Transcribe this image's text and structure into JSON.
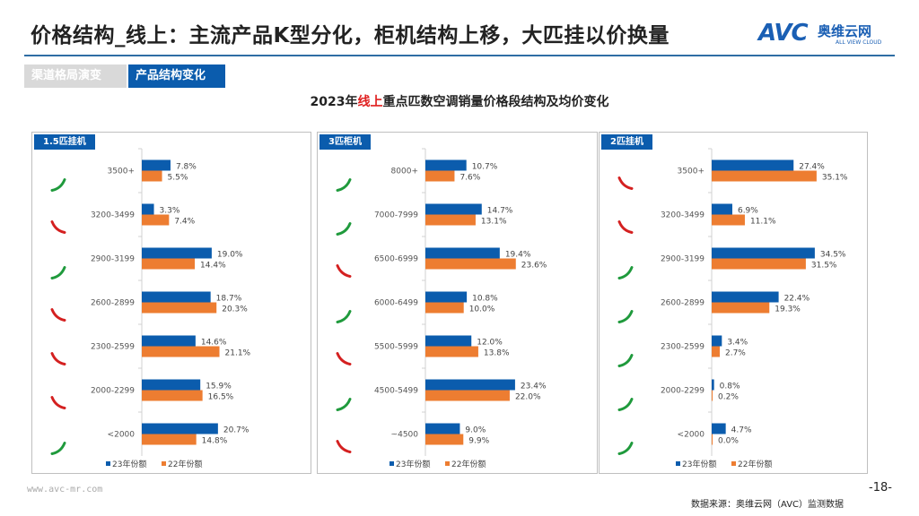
{
  "header": {
    "title": "价格结构_线上：主流产品K型分化，柜机结构上移，大匹挂以价换量",
    "logo": {
      "mark": "AVC",
      "cn": "奥维云网",
      "en": "ALL VIEW CLOUD"
    }
  },
  "tabs": [
    {
      "label": "渠道格局演变",
      "active": false
    },
    {
      "label": "产品结构变化",
      "active": true
    }
  ],
  "subtitle": {
    "prefix": "2023年",
    "highlight": "线上",
    "suffix": "重点匹数空调销量价格段结构及均价变化"
  },
  "colors": {
    "s23": "#0b5cad",
    "s22": "#ed7d31",
    "up": "#1f9a3c",
    "down": "#d42020"
  },
  "chart_data": [
    {
      "type": "bar",
      "orientation": "horizontal",
      "title": "1.5匹挂机",
      "categories": [
        "3500+",
        "3200-3499",
        "2900-3199",
        "2600-2899",
        "2300-2599",
        "2000-2299",
        "<2000"
      ],
      "series": [
        {
          "name": "23年份额",
          "values": [
            7.8,
            3.3,
            19.0,
            18.7,
            14.6,
            15.9,
            20.7
          ],
          "labels": [
            "7.8%",
            "3.3%",
            "19.0%",
            "18.7%",
            "14.6%",
            "15.9%",
            "20.7%"
          ]
        },
        {
          "name": "22年份额",
          "values": [
            5.5,
            7.4,
            14.4,
            20.3,
            21.1,
            16.5,
            14.8
          ],
          "labels": [
            "5.5%",
            "7.4%",
            "14.4%",
            "20.3%",
            "21.1%",
            "16.5%",
            "14.8%"
          ]
        }
      ],
      "trend": [
        "up",
        "down",
        "up",
        "down",
        "down",
        "down",
        "up"
      ],
      "legend": "bottom"
    },
    {
      "type": "bar",
      "orientation": "horizontal",
      "title": "3匹柜机",
      "categories": [
        "8000+",
        "7000-7999",
        "6500-6999",
        "6000-6499",
        "5500-5999",
        "4500-5499",
        "~4500"
      ],
      "series": [
        {
          "name": "23年份额",
          "values": [
            10.7,
            14.7,
            19.4,
            10.8,
            12.0,
            23.4,
            9.0
          ],
          "labels": [
            "10.7%",
            "14.7%",
            "19.4%",
            "10.8%",
            "12.0%",
            "23.4%",
            "9.0%"
          ]
        },
        {
          "name": "22年份额",
          "values": [
            7.6,
            13.1,
            23.6,
            10.0,
            13.8,
            22.0,
            9.9
          ],
          "labels": [
            "7.6%",
            "13.1%",
            "23.6%",
            "10.0%",
            "13.8%",
            "22.0%",
            "9.9%"
          ]
        }
      ],
      "trend": [
        "up",
        "up",
        "down",
        "up",
        "down",
        "up",
        "down"
      ],
      "legend": "bottom"
    },
    {
      "type": "bar",
      "orientation": "horizontal",
      "title": "2匹挂机",
      "categories": [
        "3500+",
        "3200-3499",
        "2900-3199",
        "2600-2899",
        "2300-2599",
        "2000-2299",
        "<2000"
      ],
      "series": [
        {
          "name": "23年份额",
          "values": [
            27.4,
            6.9,
            34.5,
            22.4,
            3.4,
            0.8,
            4.7
          ],
          "labels": [
            "27.4%",
            "6.9%",
            "34.5%",
            "22.4%",
            "3.4%",
            "0.8%",
            "4.7%"
          ]
        },
        {
          "name": "22年份额",
          "values": [
            35.1,
            11.1,
            31.5,
            19.3,
            2.7,
            0.2,
            0.0
          ],
          "labels": [
            "35.1%",
            "11.1%",
            "31.5%",
            "19.3%",
            "2.7%",
            "0.2%",
            "0.0%"
          ]
        }
      ],
      "trend": [
        "down",
        "down",
        "up",
        "up",
        "up",
        "up",
        "up"
      ],
      "legend": "bottom"
    }
  ],
  "footer": {
    "url": "www.avc-mr.com",
    "page": "-18-",
    "source": "数据来源：奥维云网（AVC）监测数据"
  }
}
